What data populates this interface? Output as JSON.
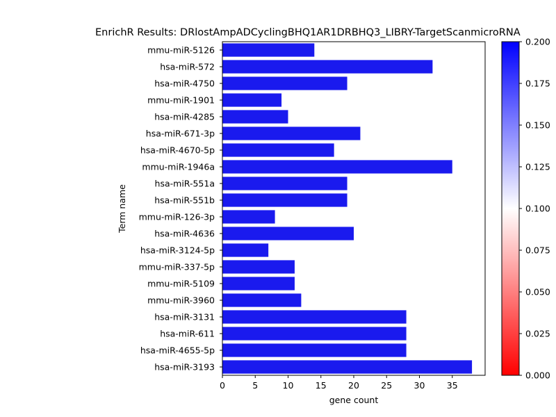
{
  "chart_data": {
    "type": "bar",
    "orientation": "horizontal",
    "title": "EnrichR Results: DRlostAmpADCyclingBHQ1AR1DRBHQ3_LIBRY-TargetScanmicroRNA",
    "xlabel": "gene count",
    "ylabel": "Term name",
    "xlim": [
      0,
      40
    ],
    "xticks": [
      0,
      5,
      10,
      15,
      20,
      25,
      30,
      35
    ],
    "categories": [
      "mmu-miR-5126",
      "hsa-miR-572",
      "hsa-miR-4750",
      "mmu-miR-1901",
      "hsa-miR-4285",
      "hsa-miR-671-3p",
      "hsa-miR-4670-5p",
      "mmu-miR-1946a",
      "hsa-miR-551a",
      "hsa-miR-551b",
      "mmu-miR-126-3p",
      "hsa-miR-4636",
      "hsa-miR-3124-5p",
      "mmu-miR-337-5p",
      "mmu-miR-5109",
      "mmu-miR-3960",
      "hsa-miR-3131",
      "hsa-miR-611",
      "hsa-miR-4655-5p",
      "hsa-miR-3193"
    ],
    "values": [
      14,
      32,
      19,
      9,
      10,
      21,
      17,
      35,
      19,
      19,
      8,
      20,
      7,
      11,
      11,
      12,
      28,
      28,
      28,
      38
    ],
    "bar_color": "#1a1aee",
    "grid": false,
    "colorbar": {
      "min": 0.0,
      "max": 0.2,
      "ticks": [
        "0.000",
        "0.025",
        "0.050",
        "0.075",
        "0.100",
        "0.125",
        "0.150",
        "0.175",
        "0.200"
      ],
      "colors": [
        "#ff0000",
        "#ffffff",
        "#0000ff"
      ],
      "placement": "right"
    }
  }
}
